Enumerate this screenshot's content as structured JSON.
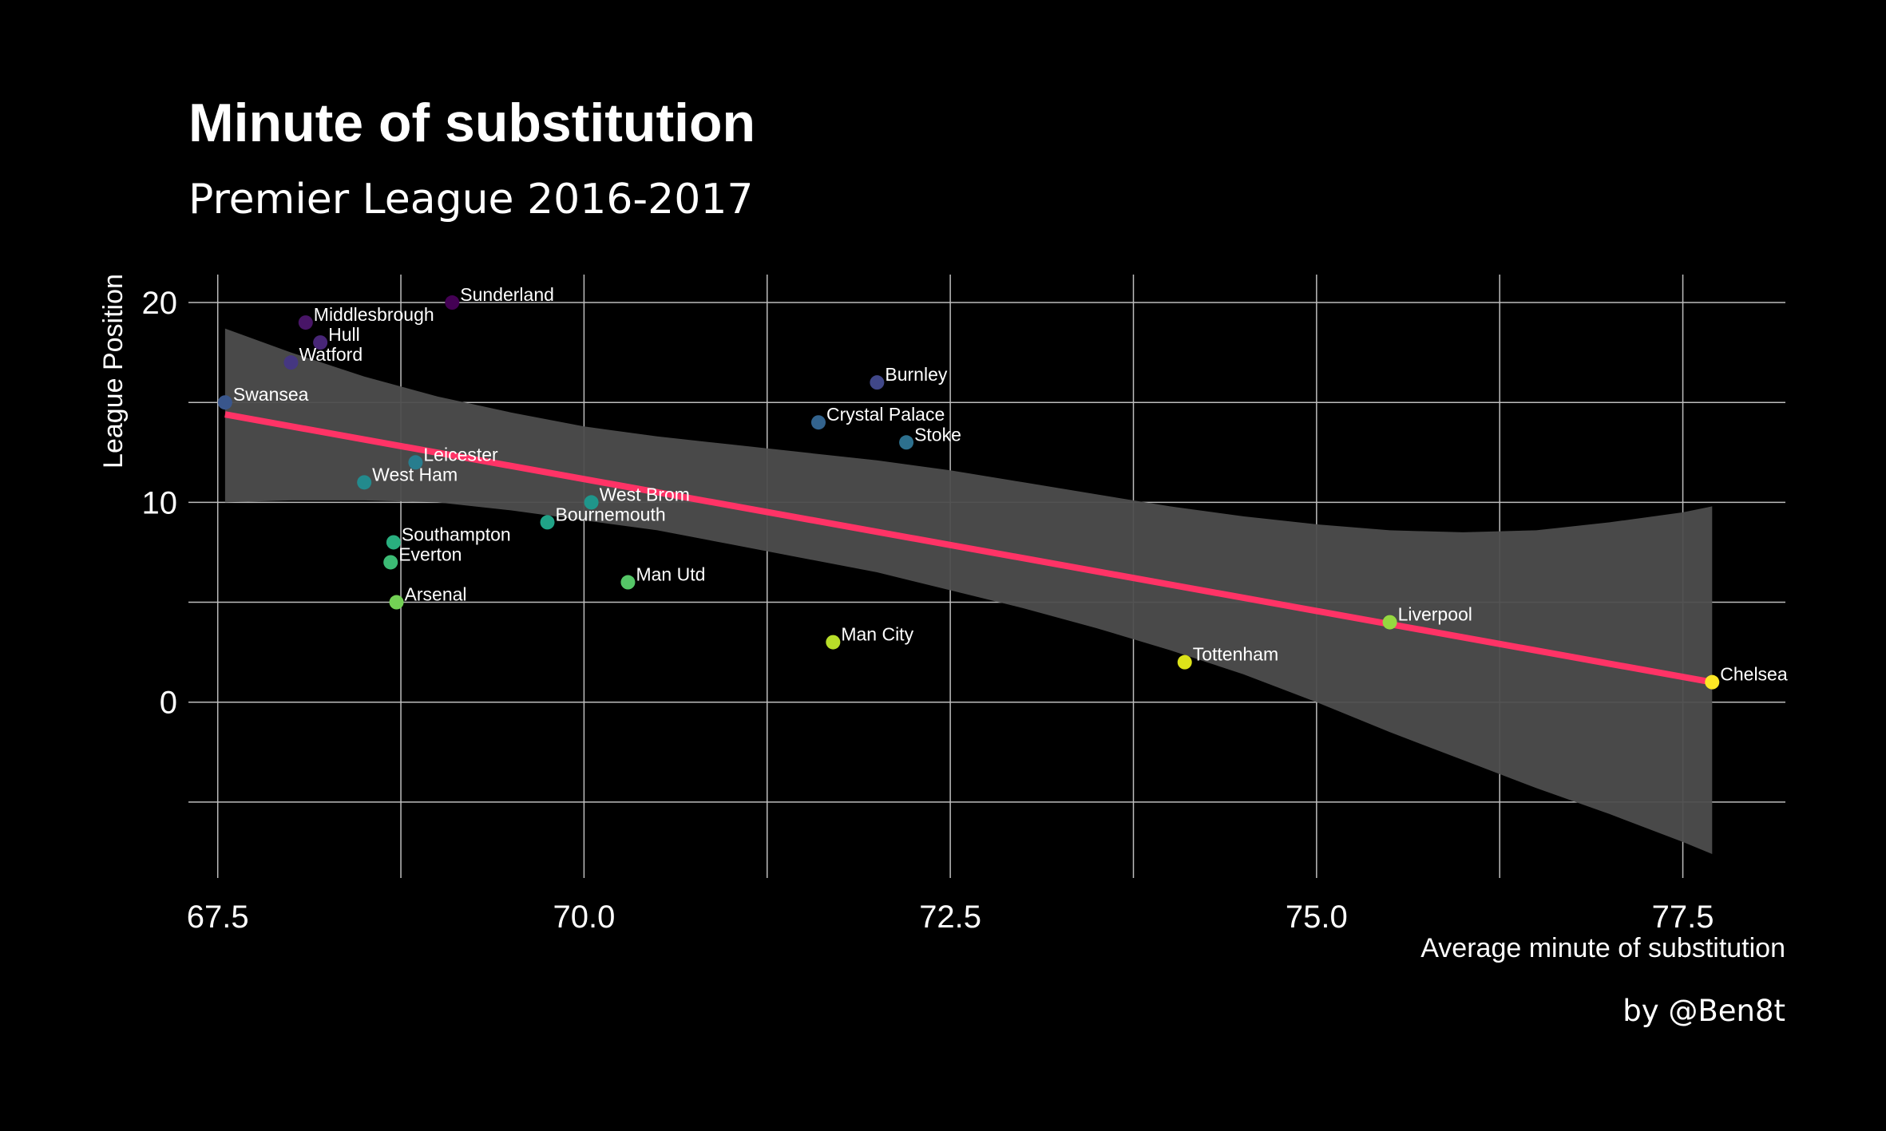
{
  "title": "Minute of substitution",
  "subtitle": "Premier League 2016-2017",
  "caption": "by @Ben8t",
  "colors": {
    "background": "#000000",
    "trend_line": "#ff3366",
    "confidence_band": "#4d4d4d",
    "grid": "#bdbdbd",
    "text": "#ffffff"
  },
  "chart_data": {
    "type": "scatter",
    "xlabel": "Average minute of substitution",
    "ylabel": "League Position",
    "xlim": [
      67.3,
      78.2
    ],
    "ylim": [
      -8.8,
      21.4
    ],
    "x_ticks": [
      67.5,
      70.0,
      72.5,
      75.0,
      77.5
    ],
    "x_tick_labels": [
      "67.5",
      "70.0",
      "72.5",
      "75.0",
      "77.5"
    ],
    "y_ticks": [
      0,
      10,
      20
    ],
    "y_tick_labels": [
      "0",
      "10",
      "20"
    ],
    "y_minor_gridlines": [
      -5,
      5,
      15
    ],
    "x_minor_gridlines": [
      68.75,
      71.25,
      73.75,
      76.25
    ],
    "grid": true,
    "color_scale": "viridis by league position (20 = dark purple, 1 = yellow)",
    "points": [
      {
        "team": "Sunderland",
        "x": 69.1,
        "y": 20,
        "color": "#440154"
      },
      {
        "team": "Middlesbrough",
        "x": 68.1,
        "y": 19,
        "color": "#481567"
      },
      {
        "team": "Hull",
        "x": 68.2,
        "y": 18,
        "color": "#482677"
      },
      {
        "team": "Watford",
        "x": 68.0,
        "y": 17,
        "color": "#453781"
      },
      {
        "team": "Burnley",
        "x": 72.0,
        "y": 16,
        "color": "#404788"
      },
      {
        "team": "Swansea",
        "x": 67.55,
        "y": 15,
        "color": "#39568c"
      },
      {
        "team": "Crystal Palace",
        "x": 71.6,
        "y": 14,
        "color": "#33638d"
      },
      {
        "team": "Stoke",
        "x": 72.2,
        "y": 13,
        "color": "#2d708e"
      },
      {
        "team": "Leicester",
        "x": 68.85,
        "y": 12,
        "color": "#287d8e"
      },
      {
        "team": "West Ham",
        "x": 68.5,
        "y": 11,
        "color": "#238a8d"
      },
      {
        "team": "West Brom",
        "x": 70.05,
        "y": 10,
        "color": "#1f968b"
      },
      {
        "team": "Bournemouth",
        "x": 69.75,
        "y": 9,
        "color": "#20a387"
      },
      {
        "team": "Southampton",
        "x": 68.7,
        "y": 8,
        "color": "#29af7f"
      },
      {
        "team": "Everton",
        "x": 68.68,
        "y": 7,
        "color": "#3cbb75"
      },
      {
        "team": "Man Utd",
        "x": 70.3,
        "y": 6,
        "color": "#55c667"
      },
      {
        "team": "Arsenal",
        "x": 68.72,
        "y": 5,
        "color": "#73d055"
      },
      {
        "team": "Liverpool",
        "x": 75.5,
        "y": 4,
        "color": "#95d840"
      },
      {
        "team": "Man City",
        "x": 71.7,
        "y": 3,
        "color": "#b8de29"
      },
      {
        "team": "Tottenham",
        "x": 74.1,
        "y": 2,
        "color": "#dce319"
      },
      {
        "team": "Chelsea",
        "x": 77.7,
        "y": 1,
        "color": "#fde725"
      }
    ],
    "trend_line": {
      "x": [
        67.55,
        77.7
      ],
      "y": [
        14.4,
        1.0
      ]
    },
    "confidence_band": {
      "x": [
        67.55,
        68.0,
        68.5,
        69.0,
        69.5,
        70.0,
        70.5,
        71.0,
        71.5,
        72.0,
        72.5,
        73.0,
        73.5,
        74.0,
        74.5,
        75.0,
        75.5,
        76.0,
        76.5,
        77.0,
        77.5,
        77.7
      ],
      "upper": [
        18.7,
        17.5,
        16.3,
        15.3,
        14.5,
        13.8,
        13.3,
        12.9,
        12.5,
        12.1,
        11.6,
        11.0,
        10.4,
        9.8,
        9.3,
        8.9,
        8.6,
        8.5,
        8.6,
        9.0,
        9.5,
        9.8
      ],
      "lower": [
        10.0,
        10.1,
        10.1,
        10.0,
        9.6,
        9.1,
        8.6,
        7.9,
        7.2,
        6.5,
        5.6,
        4.7,
        3.7,
        2.6,
        1.4,
        0.0,
        -1.5,
        -2.9,
        -4.3,
        -5.6,
        -7.0,
        -7.6
      ]
    }
  }
}
